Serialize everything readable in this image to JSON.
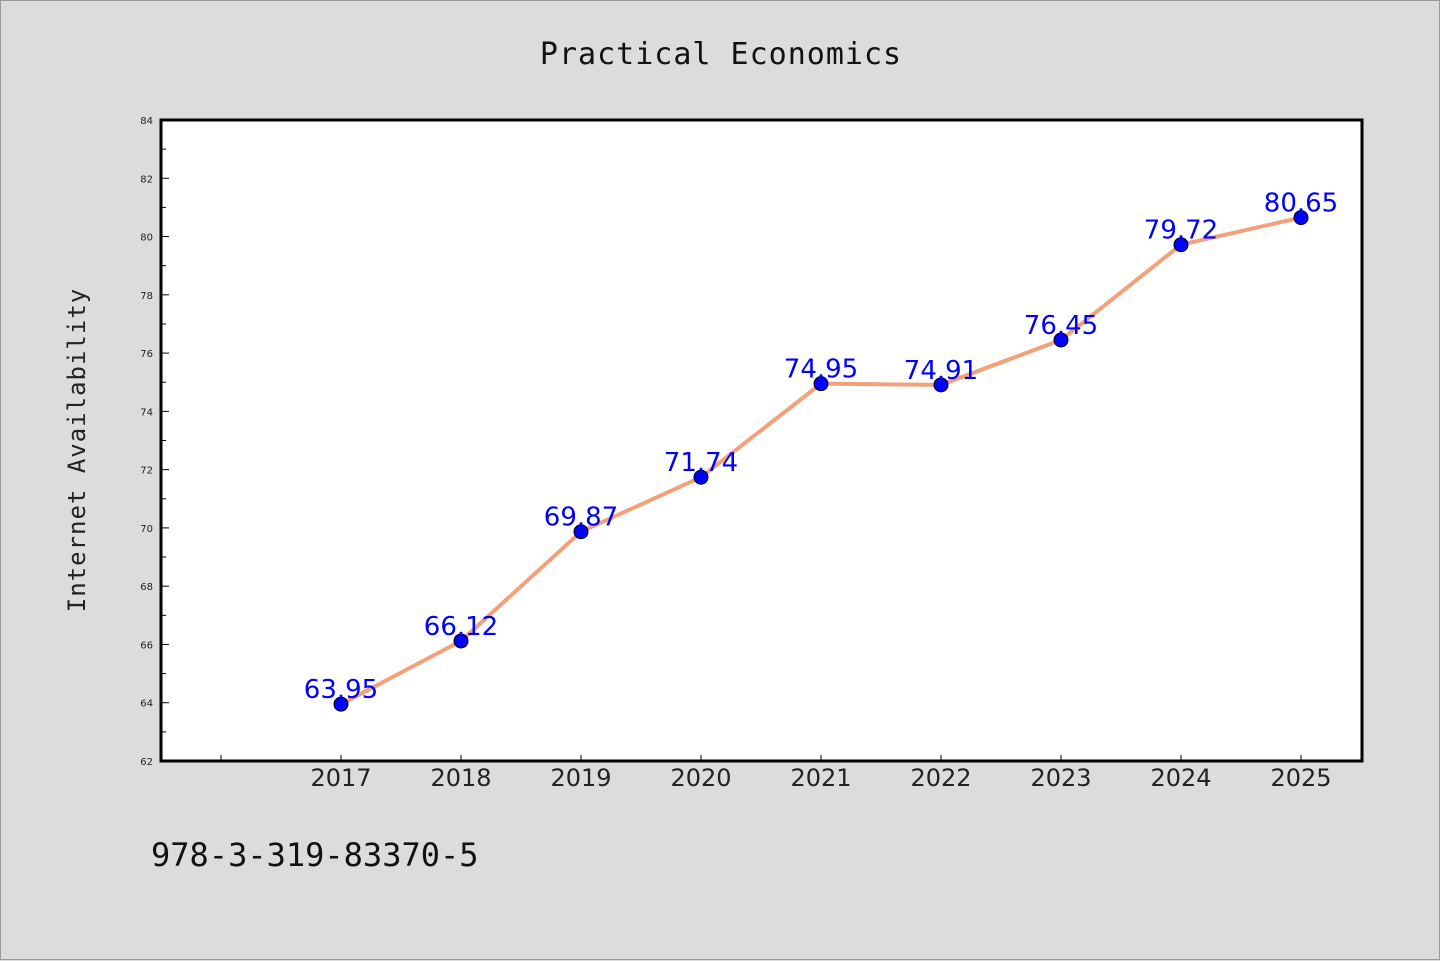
{
  "chart_data": {
    "type": "line",
    "title": "Practical Economics",
    "xlabel": "",
    "ylabel": "Internet Availability",
    "categories": [
      "2017",
      "2018",
      "2019",
      "2020",
      "2021",
      "2022",
      "2023",
      "2024",
      "2025"
    ],
    "series": [
      {
        "values": [
          63.95,
          66.12,
          69.87,
          71.74,
          74.95,
          74.91,
          76.45,
          79.72,
          80.65
        ],
        "labels": [
          "63.95",
          "66.12",
          "69.87",
          "71.74",
          "74.95",
          "74.91",
          "76.45",
          "79.72",
          "80.65"
        ],
        "line_color": "#f4a07a",
        "marker_color": "#0000ff"
      }
    ],
    "ylim": [
      62,
      84
    ],
    "yticks": [
      "62",
      "64",
      "66",
      "68",
      "70",
      "72",
      "74",
      "76",
      "78",
      "80",
      "82",
      "84"
    ],
    "grid": false,
    "legend": "none"
  },
  "footer": {
    "isbn": "978-3-319-83370-5"
  }
}
